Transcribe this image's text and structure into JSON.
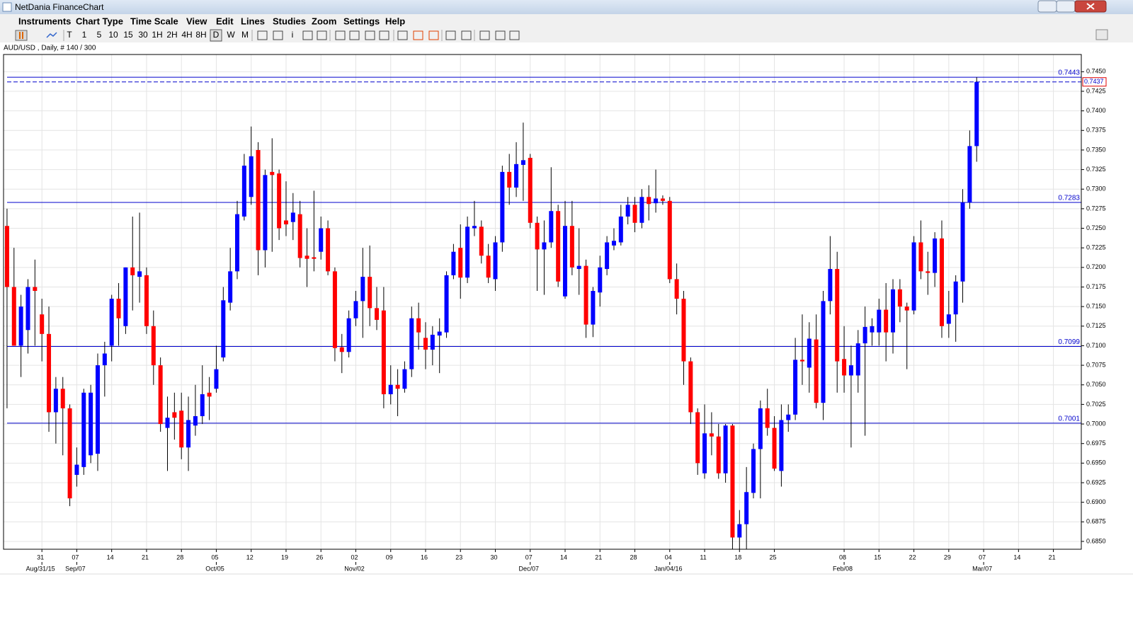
{
  "window": {
    "title": "NetDania FinanceChart"
  },
  "menu": [
    "Instruments",
    "Chart Type",
    "Time Scale",
    "View",
    "Edit",
    "Lines",
    "Studies",
    "Zoom",
    "Settings",
    "Help"
  ],
  "toolbar": [
    "T",
    "1",
    "5",
    "10",
    "15",
    "30",
    "1H",
    "2H",
    "4H",
    "8H",
    "D",
    "W",
    "M",
    "i"
  ],
  "chart_data": {
    "type": "candlestick",
    "instrument": "AUD/USD , Daily, # 140 / 300",
    "up_color": "#0000ff",
    "down_color": "#ff0000",
    "open": [
      0.7253,
      0.7175,
      0.71,
      0.712,
      0.7175,
      0.714,
      0.7115,
      0.7015,
      0.7045,
      0.702,
      0.6935,
      0.6945,
      0.696,
      0.6962,
      0.7075,
      0.71,
      0.716,
      0.7125,
      0.72,
      0.7188,
      0.719,
      0.7125,
      0.7075,
      0.6995,
      0.7015,
      0.7017,
      0.697,
      0.6998,
      0.701,
      0.704,
      0.7045,
      0.7085,
      0.7155,
      0.7195,
      0.7265,
      0.729,
      0.735,
      0.7222,
      0.7322,
      0.732,
      0.726,
      0.7258,
      0.7268,
      0.7215,
      0.7213,
      0.722,
      0.725,
      0.7195,
      0.7098,
      0.7092,
      0.7135,
      0.7157,
      0.7188,
      0.7148,
      0.7145,
      0.7038,
      0.705,
      0.7045,
      0.707,
      0.7135,
      0.711,
      0.7095,
      0.7113,
      0.7117,
      0.719,
      0.7225,
      0.7187,
      0.725,
      0.7252,
      0.7215,
      0.7185,
      0.7232,
      0.7322,
      0.7302,
      0.7331,
      0.734,
      0.7257,
      0.7223,
      0.7232,
      0.7272,
      0.7163,
      0.7253,
      0.7198,
      0.7202,
      0.7127,
      0.7168,
      0.7198,
      0.7228,
      0.7232,
      0.7265,
      0.728,
      0.7257,
      0.729,
      0.7282,
      0.7288,
      0.7285,
      0.7185,
      0.716,
      0.708,
      0.7015,
      0.6937,
      0.6988,
      0.6984,
      0.6937,
      0.6998,
      0.6855,
      0.6872,
      0.6912,
      0.6968,
      0.702,
      0.6995,
      0.694,
      0.7005,
      0.7012,
      0.7082,
      0.7072,
      0.7108,
      0.7027,
      0.7157,
      0.7198,
      0.7083,
      0.7062,
      0.7062,
      0.7103,
      0.7117,
      0.7117,
      0.7146,
      0.7117,
      0.7172,
      0.715,
      0.7145,
      0.7232,
      0.7195,
      0.7193,
      0.7237,
      0.7128,
      0.714,
      0.7182,
      0.7283,
      0.7355
    ],
    "high": [
      0.7275,
      0.7225,
      0.7165,
      0.7185,
      0.721,
      0.716,
      0.715,
      0.706,
      0.706,
      0.7025,
      0.697,
      0.7045,
      0.705,
      0.709,
      0.7105,
      0.7165,
      0.718,
      0.72,
      0.7265,
      0.727,
      0.72,
      0.7145,
      0.7085,
      0.7035,
      0.704,
      0.704,
      0.7035,
      0.705,
      0.7075,
      0.706,
      0.71,
      0.7175,
      0.7225,
      0.7285,
      0.7345,
      0.738,
      0.736,
      0.7325,
      0.7365,
      0.7325,
      0.731,
      0.7295,
      0.7285,
      0.725,
      0.7298,
      0.7265,
      0.726,
      0.72,
      0.7115,
      0.7145,
      0.717,
      0.7225,
      0.7228,
      0.7175,
      0.7175,
      0.7075,
      0.707,
      0.708,
      0.715,
      0.7155,
      0.713,
      0.7125,
      0.7135,
      0.7195,
      0.723,
      0.7255,
      0.7265,
      0.7285,
      0.726,
      0.723,
      0.724,
      0.733,
      0.7345,
      0.736,
      0.7385,
      0.7345,
      0.7265,
      0.726,
      0.7328,
      0.728,
      0.7285,
      0.7285,
      0.725,
      0.721,
      0.7175,
      0.7215,
      0.724,
      0.725,
      0.728,
      0.729,
      0.729,
      0.73,
      0.7305,
      0.7325,
      0.7292,
      0.729,
      0.7205,
      0.717,
      0.7085,
      0.702,
      0.7025,
      0.7015,
      0.7,
      0.7,
      0.7,
      0.689,
      0.6945,
      0.6975,
      0.703,
      0.7045,
      0.701,
      0.7025,
      0.7025,
      0.711,
      0.714,
      0.713,
      0.714,
      0.717,
      0.724,
      0.722,
      0.7125,
      0.71,
      0.712,
      0.715,
      0.7135,
      0.716,
      0.718,
      0.7185,
      0.7185,
      0.7155,
      0.724,
      0.726,
      0.722,
      0.7245,
      0.726,
      0.717,
      0.719,
      0.73,
      0.7375,
      0.7443
    ],
    "low": [
      0.702,
      0.71,
      0.706,
      0.709,
      0.71,
      0.708,
      0.699,
      0.6975,
      0.696,
      0.6895,
      0.692,
      0.6935,
      0.695,
      0.694,
      0.7035,
      0.708,
      0.71,
      0.7115,
      0.7145,
      0.7155,
      0.7115,
      0.705,
      0.699,
      0.694,
      0.698,
      0.6955,
      0.694,
      0.6985,
      0.7,
      0.7005,
      0.704,
      0.708,
      0.7145,
      0.7185,
      0.726,
      0.728,
      0.719,
      0.72,
      0.722,
      0.7235,
      0.724,
      0.7235,
      0.72,
      0.7175,
      0.7195,
      0.721,
      0.719,
      0.708,
      0.7065,
      0.7085,
      0.7125,
      0.711,
      0.7125,
      0.712,
      0.702,
      0.7025,
      0.701,
      0.704,
      0.706,
      0.7095,
      0.707,
      0.7075,
      0.7065,
      0.711,
      0.7185,
      0.716,
      0.718,
      0.724,
      0.7205,
      0.718,
      0.717,
      0.722,
      0.728,
      0.729,
      0.7285,
      0.725,
      0.717,
      0.7165,
      0.7225,
      0.7175,
      0.716,
      0.719,
      0.7165,
      0.711,
      0.7111,
      0.715,
      0.719,
      0.7222,
      0.7228,
      0.7255,
      0.7245,
      0.725,
      0.726,
      0.727,
      0.728,
      0.718,
      0.714,
      0.705,
      0.7,
      0.6935,
      0.693,
      0.696,
      0.693,
      0.6925,
      0.684,
      0.684,
      0.684,
      0.6905,
      0.6905,
      0.6985,
      0.694,
      0.692,
      0.699,
      0.7005,
      0.705,
      0.704,
      0.702,
      0.7005,
      0.714,
      0.704,
      0.704,
      0.697,
      0.704,
      0.6985,
      0.71,
      0.71,
      0.708,
      0.709,
      0.713,
      0.707,
      0.714,
      0.7185,
      0.7165,
      0.7175,
      0.711,
      0.711,
      0.7105,
      0.7155,
      0.7275,
      0.7335
    ],
    "close": [
      0.7175,
      0.71,
      0.715,
      0.7175,
      0.717,
      0.7115,
      0.7015,
      0.7045,
      0.702,
      0.6905,
      0.6948,
      0.704,
      0.704,
      0.7075,
      0.709,
      0.716,
      0.7135,
      0.72,
      0.719,
      0.7195,
      0.7125,
      0.7075,
      0.7,
      0.7008,
      0.7008,
      0.697,
      0.7005,
      0.701,
      0.7038,
      0.7035,
      0.707,
      0.7158,
      0.7195,
      0.7268,
      0.733,
      0.7342,
      0.7222,
      0.7318,
      0.7318,
      0.725,
      0.7255,
      0.727,
      0.7212,
      0.7211,
      0.7211,
      0.725,
      0.7195,
      0.7097,
      0.7092,
      0.7135,
      0.7157,
      0.7188,
      0.7148,
      0.7133,
      0.7038,
      0.705,
      0.7045,
      0.707,
      0.7135,
      0.7117,
      0.7095,
      0.7114,
      0.7118,
      0.719,
      0.722,
      0.7187,
      0.7252,
      0.7253,
      0.7215,
      0.7187,
      0.7232,
      0.7322,
      0.7302,
      0.7332,
      0.7337,
      0.7257,
      0.7223,
      0.7232,
      0.7272,
      0.7182,
      0.7253,
      0.72,
      0.7202,
      0.7127,
      0.717,
      0.72,
      0.7232,
      0.7234,
      0.7265,
      0.728,
      0.7257,
      0.729,
      0.7281,
      0.7288,
      0.7285,
      0.7185,
      0.716,
      0.708,
      0.7015,
      0.695,
      0.6988,
      0.6984,
      0.6937,
      0.6998,
      0.6855,
      0.6872,
      0.6913,
      0.6968,
      0.702,
      0.6995,
      0.6943,
      0.7005,
      0.7012,
      0.7082,
      0.708,
      0.7109,
      0.7027,
      0.7157,
      0.7198,
      0.708,
      0.7062,
      0.7075,
      0.7103,
      0.7124,
      0.7125,
      0.7146,
      0.7117,
      0.7172,
      0.715,
      0.7145,
      0.7232,
      0.7195,
      0.7193,
      0.7237,
      0.7125,
      0.714,
      0.7182,
      0.7283,
      0.7355,
      0.7437
    ],
    "xlim": [
      -0.5,
      154
    ],
    "xticks": [
      {
        "value": 5,
        "label": "31"
      },
      {
        "value": 10,
        "label": "07"
      },
      {
        "value": 15,
        "label": "14"
      },
      {
        "value": 20,
        "label": "21"
      },
      {
        "value": 25,
        "label": "28"
      },
      {
        "value": 30,
        "label": "05"
      },
      {
        "value": 35,
        "label": "12"
      },
      {
        "value": 40,
        "label": "19"
      },
      {
        "value": 45,
        "label": "26"
      },
      {
        "value": 50,
        "label": "02"
      },
      {
        "value": 55,
        "label": "09"
      },
      {
        "value": 60,
        "label": "16"
      },
      {
        "value": 65,
        "label": "23"
      },
      {
        "value": 70,
        "label": "30"
      },
      {
        "value": 75,
        "label": "07"
      },
      {
        "value": 80,
        "label": "14"
      },
      {
        "value": 85,
        "label": "21"
      },
      {
        "value": 90,
        "label": "28"
      },
      {
        "value": 95,
        "label": "04"
      },
      {
        "value": 100,
        "label": "11"
      },
      {
        "value": 105,
        "label": "18"
      },
      {
        "value": 110,
        "label": "25"
      },
      {
        "value": 120,
        "label": "08"
      },
      {
        "value": 125,
        "label": "15"
      },
      {
        "value": 130,
        "label": "22"
      },
      {
        "value": 135,
        "label": "29"
      },
      {
        "value": 140,
        "label": "07"
      },
      {
        "value": 145,
        "label": "14"
      },
      {
        "value": 150,
        "label": "21"
      }
    ],
    "month_ticks": [
      {
        "value": 5,
        "label": "Aug/31/15"
      },
      {
        "value": 10,
        "label": "Sep/07"
      },
      {
        "value": 30,
        "label": "Oct/05"
      },
      {
        "value": 50,
        "label": "Nov/02"
      },
      {
        "value": 75,
        "label": "Dec/07"
      },
      {
        "value": 95,
        "label": "Jan/04/16"
      },
      {
        "value": 120,
        "label": "Feb/08"
      },
      {
        "value": 140,
        "label": "Mar/07"
      }
    ],
    "ylim": [
      0.684,
      0.7472
    ],
    "yticks": [
      {
        "value": 0.685,
        "label": "0.6850"
      },
      0.6875,
      {
        "value": 0.69,
        "label": "0.6900"
      },
      0.6925,
      {
        "value": 0.695,
        "label": "0.6950"
      },
      0.6975,
      {
        "value": 0.7,
        "label": "0.7000"
      },
      0.7025,
      {
        "value": 0.705,
        "label": "0.7050"
      },
      0.7075,
      {
        "value": 0.71,
        "label": "0.7100"
      },
      0.7125,
      {
        "value": 0.715,
        "label": "0.7150"
      },
      0.7175,
      {
        "value": 0.72,
        "label": "0.7200"
      },
      0.7225,
      {
        "value": 0.725,
        "label": "0.7250"
      },
      0.7275,
      {
        "value": 0.73,
        "label": "0.7300"
      },
      0.7325,
      {
        "value": 0.735,
        "label": "0.7350"
      },
      0.7375,
      {
        "value": 0.74,
        "label": "0.7400"
      },
      0.7425,
      {
        "value": 0.745,
        "label": "0.7450"
      }
    ],
    "grid": true,
    "hlines": [
      0.7443,
      0.7283,
      0.7099,
      0.7001
    ],
    "hline_color": "#0000cc",
    "last_price": 0.7437
  }
}
